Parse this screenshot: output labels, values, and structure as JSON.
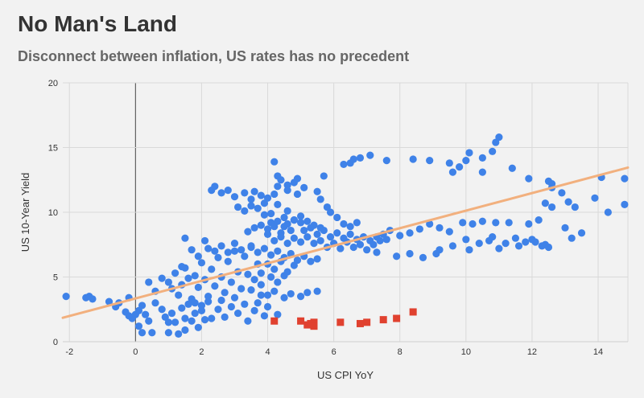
{
  "header": {
    "title": "No Man's Land",
    "subtitle": "Disconnect between inflation, US rates has no precedent"
  },
  "chart_data": {
    "type": "scatter",
    "title": "No Man's Land",
    "subtitle": "Disconnect between inflation, US rates has no precedent",
    "xlabel": "US CPI YoY",
    "ylabel": "US 10-Year Yield",
    "xlim": [
      -2.2,
      14.9
    ],
    "ylim": [
      0,
      20
    ],
    "xticks": [
      -2,
      0,
      2,
      4,
      6,
      8,
      10,
      12,
      14
    ],
    "yticks": [
      0,
      5,
      10,
      15,
      20
    ],
    "grid": true,
    "legend": "none",
    "colors": {
      "historical": "#3f82e8",
      "recent": "#e0412f",
      "trendline": "#f2b07e",
      "zero_line": "#444444",
      "grid": "#d9d9d9"
    },
    "trendline": {
      "x": [
        -2.2,
        14.9
      ],
      "y": [
        1.85,
        13.45
      ]
    },
    "series": [
      {
        "marker": "circle",
        "points": [
          [
            -2.1,
            3.5
          ],
          [
            -1.5,
            3.4
          ],
          [
            -1.4,
            3.5
          ],
          [
            -1.3,
            3.3
          ],
          [
            -0.8,
            3.1
          ],
          [
            -0.6,
            2.7
          ],
          [
            -0.5,
            3.0
          ],
          [
            -0.3,
            2.3
          ],
          [
            -0.2,
            3.4
          ],
          [
            -0.2,
            2.0
          ],
          [
            -0.1,
            1.8
          ],
          [
            0.0,
            2.1
          ],
          [
            0.1,
            2.4
          ],
          [
            0.1,
            1.2
          ],
          [
            0.2,
            2.8
          ],
          [
            0.2,
            0.7
          ],
          [
            0.3,
            2.1
          ],
          [
            0.4,
            1.6
          ],
          [
            0.5,
            0.7
          ],
          [
            0.6,
            3.0
          ],
          [
            0.8,
            2.5
          ],
          [
            0.9,
            1.9
          ],
          [
            1.0,
            1.5
          ],
          [
            1.0,
            0.7
          ],
          [
            1.1,
            2.2
          ],
          [
            1.2,
            1.5
          ],
          [
            1.3,
            0.6
          ],
          [
            1.4,
            2.6
          ],
          [
            1.5,
            1.8
          ],
          [
            1.5,
            0.9
          ],
          [
            1.6,
            2.9
          ],
          [
            1.7,
            1.6
          ],
          [
            1.8,
            2.2
          ],
          [
            1.9,
            1.1
          ],
          [
            2.0,
            2.8
          ],
          [
            2.1,
            1.7
          ],
          [
            0.4,
            4.6
          ],
          [
            0.6,
            3.9
          ],
          [
            0.8,
            4.9
          ],
          [
            1.0,
            4.6
          ],
          [
            1.1,
            4.1
          ],
          [
            1.2,
            5.3
          ],
          [
            1.3,
            3.6
          ],
          [
            1.4,
            4.4
          ],
          [
            1.5,
            5.7
          ],
          [
            1.6,
            4.9
          ],
          [
            1.7,
            3.3
          ],
          [
            1.8,
            5.1
          ],
          [
            1.9,
            4.2
          ],
          [
            2.0,
            6.1
          ],
          [
            2.1,
            4.8
          ],
          [
            2.2,
            3.5
          ],
          [
            2.3,
            5.6
          ],
          [
            2.4,
            4.3
          ],
          [
            2.5,
            6.5
          ],
          [
            2.6,
            5.0
          ],
          [
            2.7,
            3.8
          ],
          [
            2.8,
            6.2
          ],
          [
            2.9,
            4.6
          ],
          [
            3.0,
            7.0
          ],
          [
            3.1,
            5.4
          ],
          [
            3.2,
            4.1
          ],
          [
            3.3,
            6.6
          ],
          [
            3.4,
            5.2
          ],
          [
            3.5,
            7.3
          ],
          [
            3.6,
            4.8
          ],
          [
            3.7,
            6.0
          ],
          [
            3.8,
            3.6
          ],
          [
            2.2,
            7.2
          ],
          [
            2.4,
            7.0
          ],
          [
            2.6,
            7.4
          ],
          [
            2.8,
            6.9
          ],
          [
            3.0,
            7.6
          ],
          [
            3.2,
            7.1
          ],
          [
            1.4,
            5.8
          ],
          [
            1.5,
            8.0
          ],
          [
            1.7,
            7.1
          ],
          [
            1.9,
            6.6
          ],
          [
            2.1,
            7.8
          ],
          [
            1.8,
            3.0
          ],
          [
            2.0,
            2.4
          ],
          [
            2.2,
            3.1
          ],
          [
            2.3,
            1.8
          ],
          [
            2.5,
            2.5
          ],
          [
            2.6,
            3.2
          ],
          [
            2.7,
            1.9
          ],
          [
            2.9,
            2.7
          ],
          [
            3.0,
            3.4
          ],
          [
            3.1,
            2.2
          ],
          [
            3.3,
            2.9
          ],
          [
            3.4,
            1.6
          ],
          [
            3.6,
            2.4
          ],
          [
            3.7,
            3.0
          ],
          [
            3.9,
            2.0
          ],
          [
            4.0,
            2.7
          ],
          [
            4.3,
            2.1
          ],
          [
            3.5,
            4.0
          ],
          [
            3.8,
            4.4
          ],
          [
            4.0,
            3.6
          ],
          [
            4.2,
            3.9
          ],
          [
            4.5,
            3.4
          ],
          [
            4.7,
            3.7
          ],
          [
            5.0,
            3.5
          ],
          [
            5.2,
            3.8
          ],
          [
            5.5,
            3.9
          ],
          [
            2.3,
            11.7
          ],
          [
            2.4,
            12.0
          ],
          [
            2.6,
            11.5
          ],
          [
            2.8,
            11.7
          ],
          [
            3.0,
            11.2
          ],
          [
            3.3,
            11.5
          ],
          [
            3.5,
            11.0
          ],
          [
            3.6,
            11.6
          ],
          [
            3.8,
            11.3
          ],
          [
            3.9,
            10.7
          ],
          [
            4.0,
            11.1
          ],
          [
            4.2,
            11.4
          ],
          [
            4.3,
            12.0
          ],
          [
            4.6,
            11.7
          ],
          [
            4.8,
            12.3
          ],
          [
            4.9,
            11.4
          ],
          [
            5.1,
            11.9
          ],
          [
            3.1,
            10.4
          ],
          [
            3.3,
            10.1
          ],
          [
            3.5,
            10.5
          ],
          [
            3.7,
            10.3
          ],
          [
            3.9,
            9.8
          ],
          [
            4.1,
            9.9
          ],
          [
            4.3,
            10.6
          ],
          [
            4.5,
            9.6
          ],
          [
            4.6,
            10.1
          ],
          [
            4.8,
            9.4
          ],
          [
            5.0,
            9.7
          ],
          [
            5.2,
            9.3
          ],
          [
            5.4,
            9.0
          ],
          [
            5.6,
            8.8
          ],
          [
            3.4,
            8.5
          ],
          [
            3.6,
            8.8
          ],
          [
            3.8,
            9.0
          ],
          [
            4.0,
            8.7
          ],
          [
            4.1,
            9.2
          ],
          [
            4.2,
            8.9
          ],
          [
            4.3,
            9.3
          ],
          [
            4.4,
            8.4
          ],
          [
            4.5,
            8.9
          ],
          [
            4.6,
            9.1
          ],
          [
            4.7,
            8.6
          ],
          [
            4.8,
            9.4
          ],
          [
            5.0,
            9.2
          ],
          [
            5.1,
            8.6
          ],
          [
            5.3,
            8.8
          ],
          [
            5.5,
            8.3
          ],
          [
            5.7,
            8.6
          ],
          [
            5.9,
            8.1
          ],
          [
            6.1,
            8.4
          ],
          [
            6.3,
            8.0
          ],
          [
            6.5,
            8.3
          ],
          [
            6.7,
            7.9
          ],
          [
            6.9,
            8.1
          ],
          [
            7.1,
            7.8
          ],
          [
            7.3,
            8.1
          ],
          [
            4.0,
            8.3
          ],
          [
            4.2,
            7.8
          ],
          [
            4.4,
            8.1
          ],
          [
            4.6,
            7.6
          ],
          [
            4.8,
            8.0
          ],
          [
            5.0,
            7.7
          ],
          [
            5.2,
            8.1
          ],
          [
            5.4,
            7.6
          ],
          [
            5.6,
            7.8
          ],
          [
            5.8,
            7.3
          ],
          [
            6.0,
            7.6
          ],
          [
            6.2,
            7.2
          ],
          [
            6.4,
            7.7
          ],
          [
            6.6,
            7.3
          ],
          [
            6.8,
            7.5
          ],
          [
            7.0,
            7.1
          ],
          [
            7.2,
            7.5
          ],
          [
            7.4,
            7.8
          ],
          [
            7.6,
            7.9
          ],
          [
            3.5,
            7.4
          ],
          [
            3.7,
            6.9
          ],
          [
            3.9,
            7.2
          ],
          [
            4.1,
            6.7
          ],
          [
            4.3,
            7.0
          ],
          [
            4.5,
            6.5
          ],
          [
            4.7,
            6.8
          ],
          [
            4.9,
            6.3
          ],
          [
            5.1,
            6.6
          ],
          [
            5.3,
            6.2
          ],
          [
            5.5,
            6.4
          ],
          [
            4.0,
            6.0
          ],
          [
            4.2,
            5.6
          ],
          [
            4.4,
            6.2
          ],
          [
            4.6,
            5.4
          ],
          [
            4.8,
            5.9
          ],
          [
            3.8,
            5.3
          ],
          [
            4.1,
            5.0
          ],
          [
            4.3,
            4.6
          ],
          [
            4.5,
            5.1
          ],
          [
            4.2,
            13.9
          ],
          [
            4.3,
            12.8
          ],
          [
            4.4,
            12.5
          ],
          [
            4.6,
            12.1
          ],
          [
            4.9,
            12.6
          ],
          [
            5.5,
            11.6
          ],
          [
            5.6,
            11.0
          ],
          [
            5.8,
            10.4
          ],
          [
            5.9,
            10.0
          ],
          [
            6.1,
            9.6
          ],
          [
            6.3,
            9.1
          ],
          [
            6.5,
            8.9
          ],
          [
            6.7,
            9.2
          ],
          [
            5.7,
            12.8
          ],
          [
            6.3,
            13.7
          ],
          [
            6.5,
            13.8
          ],
          [
            6.6,
            14.1
          ],
          [
            6.8,
            14.2
          ],
          [
            7.1,
            14.4
          ],
          [
            7.6,
            14.0
          ],
          [
            8.4,
            14.1
          ],
          [
            8.9,
            14.0
          ],
          [
            9.5,
            13.8
          ],
          [
            9.6,
            13.1
          ],
          [
            9.8,
            13.5
          ],
          [
            10.0,
            14.0
          ],
          [
            10.1,
            14.6
          ],
          [
            10.5,
            14.2
          ],
          [
            10.5,
            13.1
          ],
          [
            10.8,
            14.7
          ],
          [
            10.9,
            15.4
          ],
          [
            11.0,
            15.8
          ],
          [
            11.4,
            13.4
          ],
          [
            11.9,
            12.6
          ],
          [
            12.5,
            12.4
          ],
          [
            12.6,
            12.2
          ],
          [
            12.6,
            11.9
          ],
          [
            12.9,
            11.5
          ],
          [
            13.1,
            10.8
          ],
          [
            13.3,
            10.4
          ],
          [
            12.6,
            10.4
          ],
          [
            14.1,
            12.7
          ],
          [
            14.8,
            12.6
          ],
          [
            7.5,
            8.3
          ],
          [
            7.7,
            8.6
          ],
          [
            8.0,
            8.2
          ],
          [
            8.3,
            8.4
          ],
          [
            8.6,
            8.7
          ],
          [
            8.9,
            9.1
          ],
          [
            9.2,
            8.8
          ],
          [
            9.5,
            8.5
          ],
          [
            9.9,
            9.2
          ],
          [
            10.2,
            9.1
          ],
          [
            10.5,
            9.3
          ],
          [
            10.9,
            9.2
          ],
          [
            11.3,
            9.2
          ],
          [
            11.9,
            9.1
          ],
          [
            12.2,
            9.4
          ],
          [
            12.4,
            10.7
          ],
          [
            13.0,
            8.8
          ],
          [
            13.2,
            8.0
          ],
          [
            13.5,
            8.4
          ],
          [
            13.9,
            11.1
          ],
          [
            14.3,
            10.0
          ],
          [
            14.8,
            10.6
          ],
          [
            7.3,
            6.9
          ],
          [
            7.9,
            6.6
          ],
          [
            8.3,
            6.8
          ],
          [
            8.7,
            6.5
          ],
          [
            9.2,
            7.1
          ],
          [
            9.6,
            7.4
          ],
          [
            10.0,
            7.9
          ],
          [
            10.4,
            7.6
          ],
          [
            10.7,
            7.8
          ],
          [
            11.0,
            7.2
          ],
          [
            11.2,
            7.6
          ],
          [
            11.5,
            8.0
          ],
          [
            11.8,
            7.7
          ],
          [
            12.0,
            7.9
          ],
          [
            12.1,
            7.7
          ],
          [
            12.3,
            7.4
          ],
          [
            12.4,
            7.5
          ],
          [
            12.5,
            7.3
          ],
          [
            9.1,
            6.8
          ],
          [
            10.1,
            7.1
          ],
          [
            10.8,
            8.1
          ],
          [
            11.6,
            7.4
          ]
        ]
      },
      {
        "marker": "square",
        "points": [
          [
            4.2,
            1.6
          ],
          [
            5.0,
            1.6
          ],
          [
            5.2,
            1.3
          ],
          [
            5.3,
            1.4
          ],
          [
            5.4,
            1.5
          ],
          [
            5.4,
            1.2
          ],
          [
            6.2,
            1.5
          ],
          [
            6.8,
            1.4
          ],
          [
            7.0,
            1.5
          ],
          [
            7.5,
            1.7
          ],
          [
            7.9,
            1.8
          ],
          [
            8.4,
            2.3
          ]
        ]
      }
    ]
  }
}
